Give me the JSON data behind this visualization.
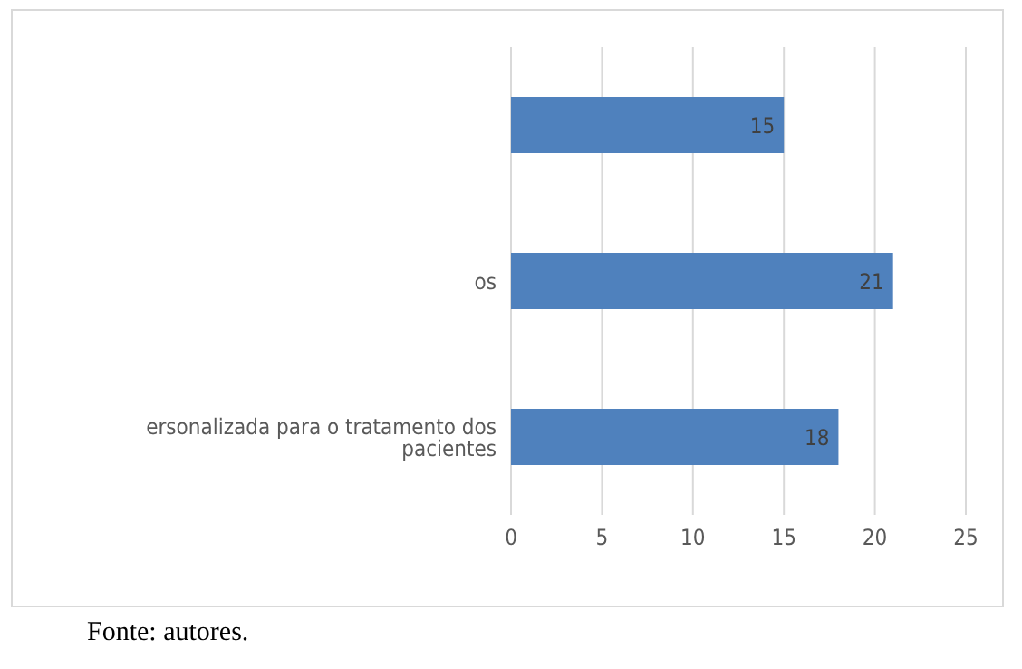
{
  "chart_data": {
    "type": "bar",
    "orientation": "horizontal",
    "categories": [
      null,
      "os",
      "ersonalizada para o tratamento dos pacientes"
    ],
    "values": [
      15,
      21,
      18
    ],
    "color": "#4f81bd",
    "xlim": [
      0,
      25
    ],
    "xticks": [
      0,
      5,
      10,
      15,
      20,
      25
    ],
    "grid": "x",
    "data_labels": true,
    "annotations": [
      "Fonte: autores."
    ]
  }
}
